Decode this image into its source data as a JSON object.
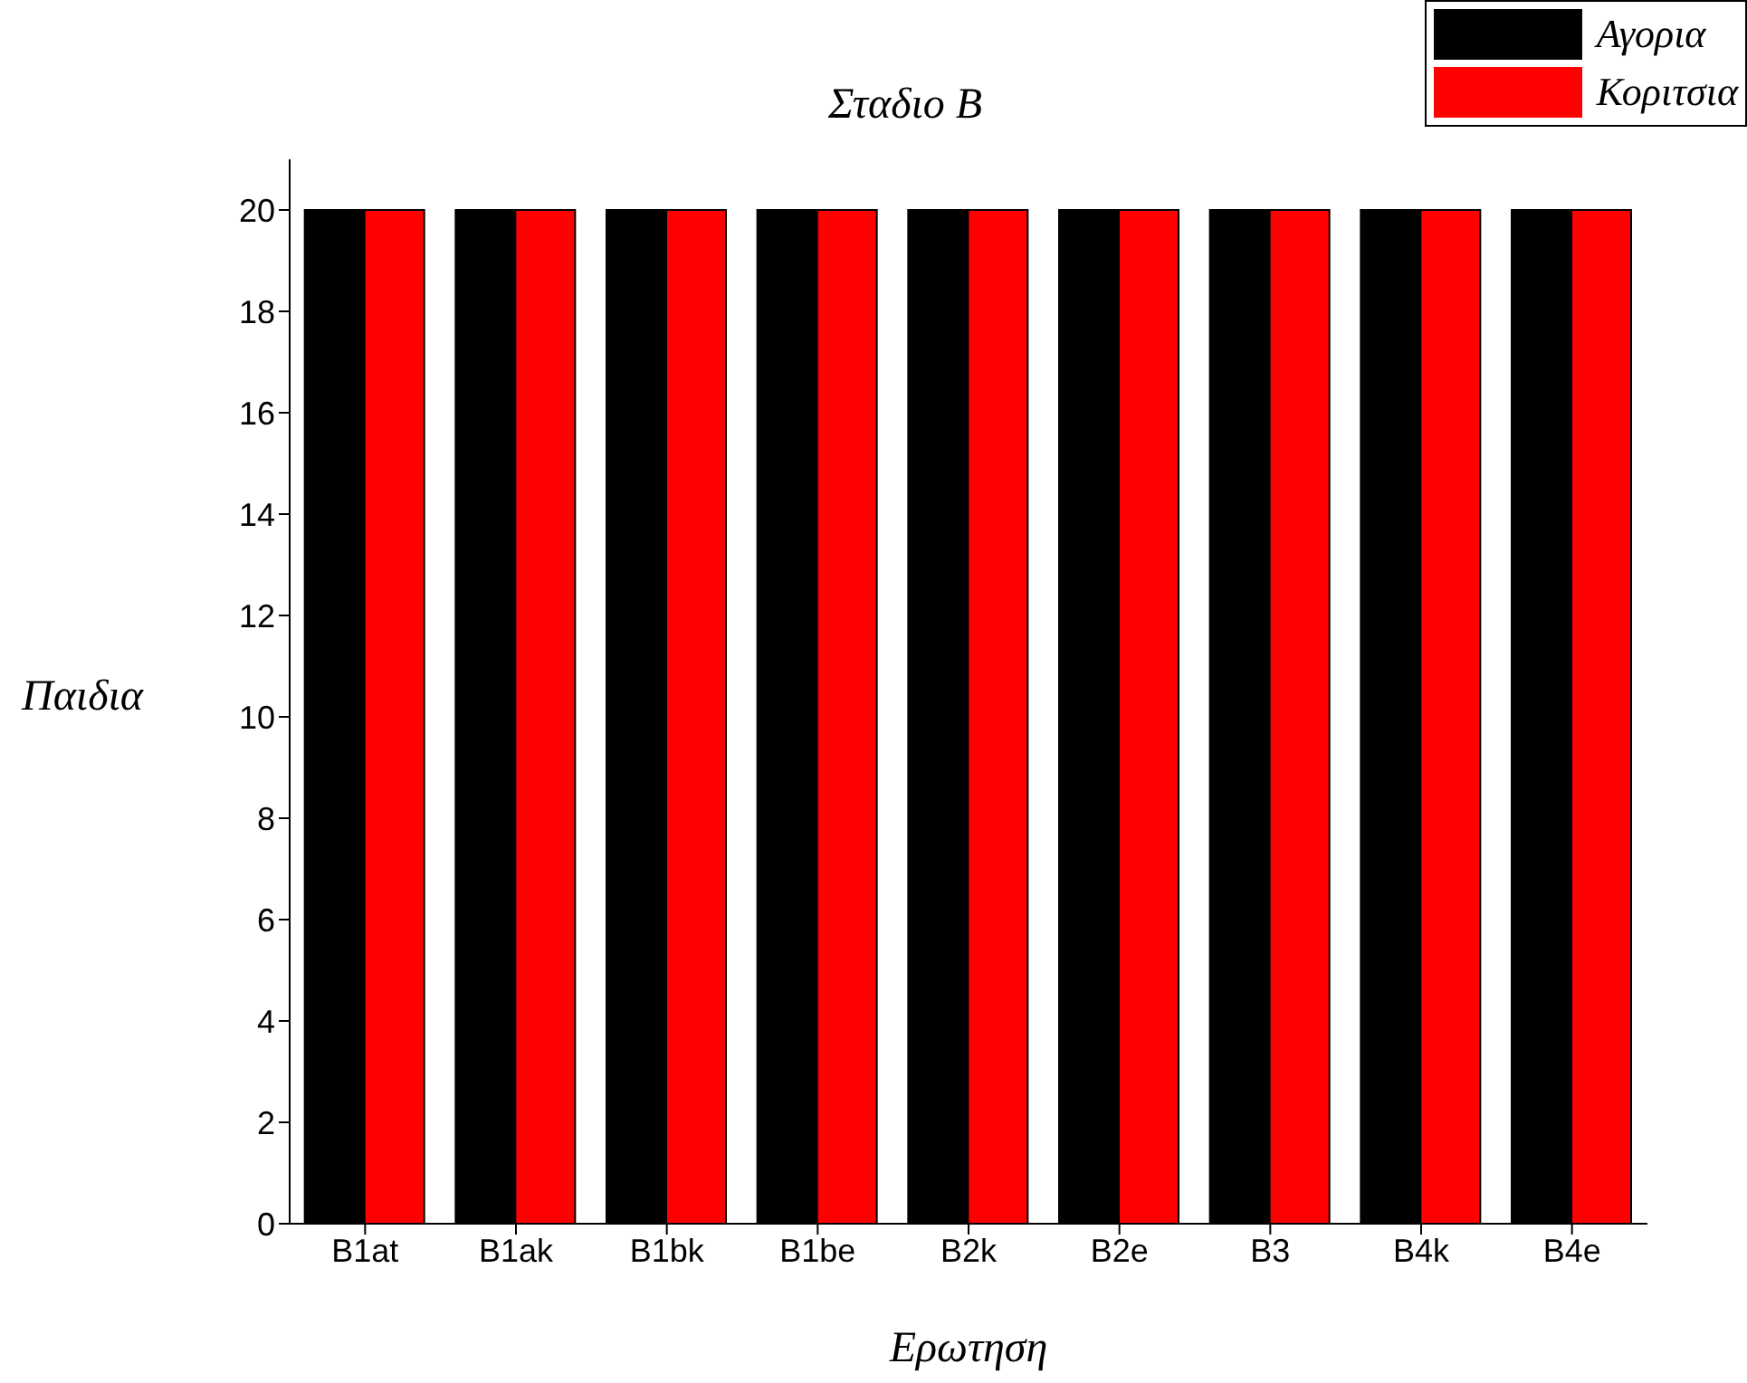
{
  "chart_data": {
    "type": "bar",
    "title": "Σταδιο B",
    "xlabel": "Ερωτηση",
    "ylabel": "Παιδια",
    "categories": [
      "B1at",
      "B1ak",
      "B1bk",
      "B1be",
      "B2k",
      "B2e",
      "B3",
      "B4k",
      "B4e"
    ],
    "series": [
      {
        "name": "Αγορια",
        "color": "#000000",
        "values": [
          20,
          20,
          20,
          20,
          20,
          20,
          20,
          20,
          20
        ]
      },
      {
        "name": "Κοριτσια",
        "color": "#ff0000",
        "values": [
          20,
          20,
          20,
          20,
          20,
          20,
          20,
          20,
          20
        ]
      }
    ],
    "ylim": [
      0,
      21
    ],
    "yticks": [
      0,
      2,
      4,
      6,
      8,
      10,
      12,
      14,
      16,
      18,
      20
    ],
    "grid": false,
    "legend": "top right"
  }
}
